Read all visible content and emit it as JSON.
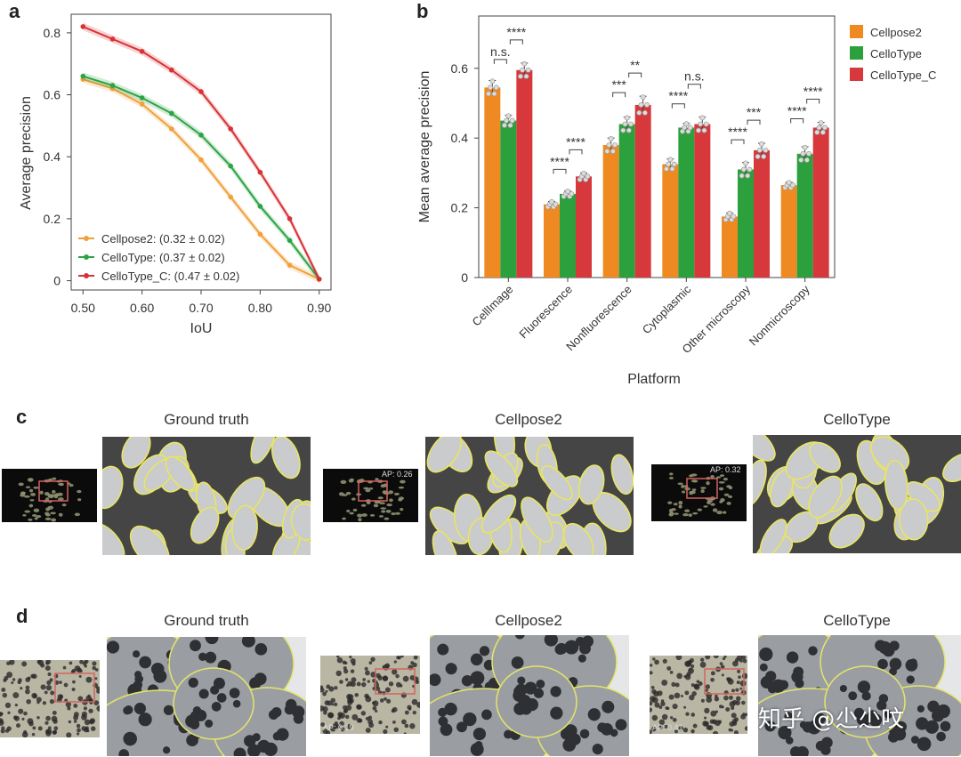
{
  "panels": {
    "a": "a",
    "b": "b",
    "c": "c",
    "d": "d"
  },
  "chart_a": {
    "type": "line",
    "xlabel": "IoU",
    "ylabel": "Average precision",
    "x": [
      0.5,
      0.55,
      0.6,
      0.65,
      0.7,
      0.75,
      0.8,
      0.85,
      0.9
    ],
    "xticks": [
      "0.50",
      "0.60",
      "0.70",
      "0.80",
      "0.90"
    ],
    "xtick_values": [
      0.5,
      0.6,
      0.7,
      0.8,
      0.9
    ],
    "yticks": [
      "0",
      "0.2",
      "0.4",
      "0.6",
      "0.8"
    ],
    "ytick_values": [
      0,
      0.2,
      0.4,
      0.6,
      0.8
    ],
    "xlim": [
      0.48,
      0.92
    ],
    "ylim": [
      -0.03,
      0.86
    ],
    "series": [
      {
        "name": "Cellpose2: (0.32 ± 0.02)",
        "color": "#f0a03c",
        "values": [
          0.65,
          0.62,
          0.57,
          0.49,
          0.39,
          0.27,
          0.15,
          0.05,
          0.005
        ]
      },
      {
        "name": "CelloType: (0.37 ± 0.02)",
        "color": "#2ca444",
        "values": [
          0.66,
          0.63,
          0.59,
          0.54,
          0.47,
          0.37,
          0.24,
          0.13,
          0.005
        ]
      },
      {
        "name": "CelloType_C: (0.47 ± 0.02)",
        "color": "#d93236",
        "values": [
          0.82,
          0.78,
          0.74,
          0.68,
          0.61,
          0.49,
          0.35,
          0.2,
          0.005
        ]
      }
    ],
    "legend_position": "bottom-left"
  },
  "chart_b": {
    "type": "bar",
    "xlabel": "Platform",
    "ylabel": "Mean average precision",
    "categories": [
      "CellImage",
      "Fluorescence",
      "Nonfluorescence",
      "Cytoplasmic",
      "Other microscopy",
      "Nonmicroscopy"
    ],
    "yticks": [
      "0",
      "0.2",
      "0.4",
      "0.6"
    ],
    "ytick_values": [
      0,
      0.2,
      0.4,
      0.6
    ],
    "ylim": [
      0,
      0.75
    ],
    "series": [
      {
        "name": "Cellpose2",
        "color": "#ef8a22",
        "values": [
          0.545,
          0.21,
          0.38,
          0.325,
          0.175,
          0.265
        ],
        "errors": [
          0.02,
          0.008,
          0.02,
          0.015,
          0.01,
          0.008
        ]
      },
      {
        "name": "CelloType",
        "color": "#2ca03c",
        "values": [
          0.45,
          0.24,
          0.44,
          0.43,
          0.31,
          0.355
        ],
        "errors": [
          0.015,
          0.008,
          0.02,
          0.012,
          0.02,
          0.02
        ]
      },
      {
        "name": "CelloType_C",
        "color": "#d6383c",
        "values": [
          0.595,
          0.29,
          0.495,
          0.44,
          0.365,
          0.43
        ],
        "errors": [
          0.02,
          0.01,
          0.025,
          0.02,
          0.02,
          0.015
        ]
      }
    ],
    "significance": [
      {
        "lower": "n.s.",
        "upper": "****"
      },
      {
        "lower": "****",
        "upper": "****"
      },
      {
        "lower": "***",
        "upper": "**"
      },
      {
        "lower": "****",
        "upper": "n.s."
      },
      {
        "lower": "****",
        "upper": "***"
      },
      {
        "lower": "****",
        "upper": "****"
      }
    ],
    "legend_position": "top-right"
  },
  "panel_c": {
    "titles": [
      "Ground truth",
      "Cellpose2",
      "CelloType"
    ],
    "ap_labels": [
      "",
      "AP: 0.26",
      "AP: 0.32"
    ]
  },
  "panel_d": {
    "titles": [
      "Ground truth",
      "Cellpose2",
      "CelloType"
    ],
    "ap_labels": [
      "",
      "AP: 0.19",
      "AP: 0.41"
    ]
  },
  "watermark": "知乎 @尐尐呅"
}
